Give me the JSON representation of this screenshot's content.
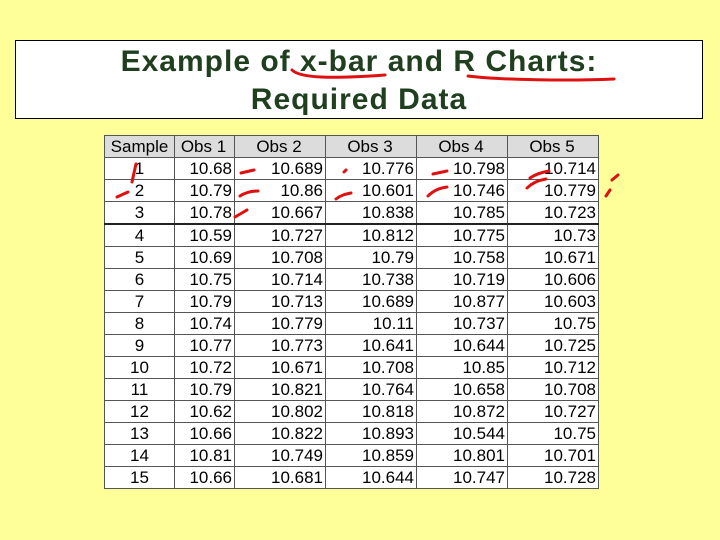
{
  "title": {
    "line1": "Example of x-bar and R Charts:",
    "line2": "Required Data"
  },
  "table": {
    "headers": [
      "Sample",
      "Obs 1",
      "Obs 2",
      "Obs 3",
      "Obs 4",
      "Obs 5"
    ],
    "rows": [
      [
        "1",
        "10.68",
        "10.689",
        "10.776",
        "10.798",
        "10.714"
      ],
      [
        "2",
        "10.79",
        "10.86",
        "10.601",
        "10.746",
        "10.779"
      ],
      [
        "3",
        "10.78",
        "10.667",
        "10.838",
        "10.785",
        "10.723"
      ],
      [
        "4",
        "10.59",
        "10.727",
        "10.812",
        "10.775",
        "10.73"
      ],
      [
        "5",
        "10.69",
        "10.708",
        "10.79",
        "10.758",
        "10.671"
      ],
      [
        "6",
        "10.75",
        "10.714",
        "10.738",
        "10.719",
        "10.606"
      ],
      [
        "7",
        "10.79",
        "10.713",
        "10.689",
        "10.877",
        "10.603"
      ],
      [
        "8",
        "10.74",
        "10.779",
        "10.11",
        "10.737",
        "10.75"
      ],
      [
        "9",
        "10.77",
        "10.773",
        "10.641",
        "10.644",
        "10.725"
      ],
      [
        "10",
        "10.72",
        "10.671",
        "10.708",
        "10.85",
        "10.712"
      ],
      [
        "11",
        "10.79",
        "10.821",
        "10.764",
        "10.658",
        "10.708"
      ],
      [
        "12",
        "10.62",
        "10.802",
        "10.818",
        "10.872",
        "10.727"
      ],
      [
        "13",
        "10.66",
        "10.822",
        "10.893",
        "10.544",
        "10.75"
      ],
      [
        "14",
        "10.81",
        "10.749",
        "10.859",
        "10.801",
        "10.701"
      ],
      [
        "15",
        "10.66",
        "10.681",
        "10.644",
        "10.747",
        "10.728"
      ]
    ]
  },
  "colors": {
    "background": "#ffff99",
    "title_text": "#1f3f1f",
    "ink": "#e01010"
  }
}
